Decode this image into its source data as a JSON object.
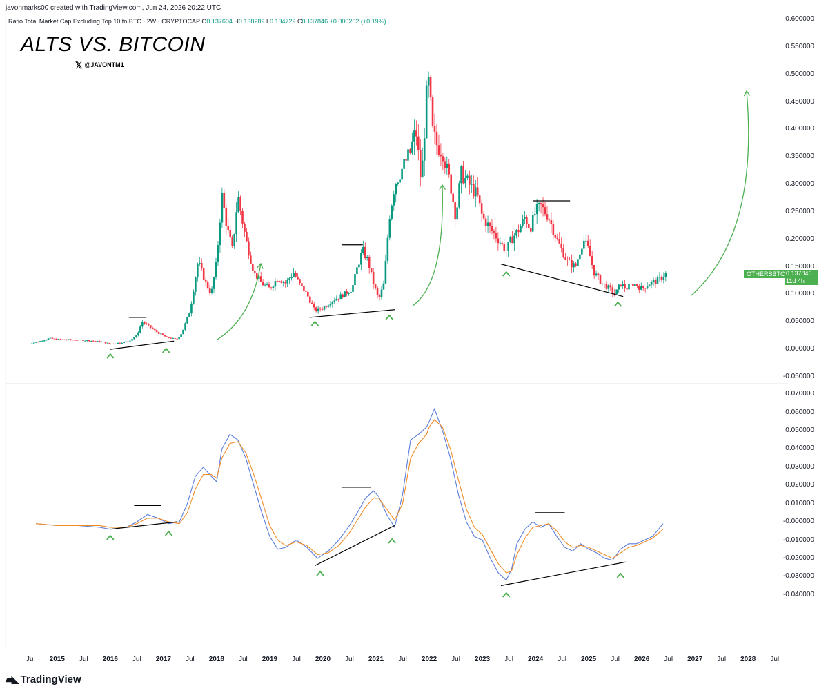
{
  "header": {
    "credit": "javonmarks00 created with TradingView.com, Jun 24, 2026 20:22 UTC",
    "symbol": "Ratio Total Market Cap Excluding Top 10 to BTC · 2W · CRYPTOCAP",
    "o_label": "O",
    "o_value": "0.137604",
    "h_label": "H",
    "h_value": "0.138289",
    "l_label": "L",
    "l_value": "0.134729",
    "c_label": "C",
    "c_value": "0.137846",
    "change": "+0.000262 (+0.19%)"
  },
  "overlay": {
    "title": "ALTS VS. BITCOIN",
    "handle": "@JAVONTM1",
    "handle_icon": "x-logo-icon"
  },
  "price_badge": {
    "symbol": "OTHERSBTC",
    "value": "0.137846",
    "countdown": "11d 4h",
    "color": "#4caf50"
  },
  "brand": {
    "name": "TradingView",
    "icon": "tradingview-logo-icon"
  },
  "colors": {
    "up": "#089981",
    "down": "#f23645",
    "oscillator_fast": "#5b7ddb",
    "oscillator_slow": "#f08a24",
    "annotation_arrow": "#4caf50",
    "trendline": "#000000"
  },
  "chart_data": [
    {
      "type": "candlestick",
      "title": "Ratio Total Market Cap Excluding Top 10 to BTC · 2W · CRYPTOCAP",
      "y_ticks": [
        "0.600000",
        "0.550000",
        "0.500000",
        "0.450000",
        "0.400000",
        "0.350000",
        "0.300000",
        "0.250000",
        "0.200000",
        "0.150000",
        "0.100000",
        "0.050000",
        "0.000000",
        "-0.050000"
      ],
      "ylim": [
        -0.05,
        0.6
      ],
      "x_ticks": [
        "Jul",
        "2015",
        "Jul",
        "2016",
        "Jul",
        "2017",
        "Jul",
        "2018",
        "Jul",
        "2019",
        "Jul",
        "2020",
        "Jul",
        "2021",
        "Jul",
        "2022",
        "Jul",
        "2023",
        "Jul",
        "2024",
        "Jul",
        "2025",
        "Jul",
        "2026",
        "Jul",
        "2027",
        "Jul",
        "2028",
        "Jul"
      ],
      "x_range": [
        2014.25,
        2028.75
      ],
      "close_path_year": [
        2014.45,
        2014.7,
        2014.85,
        2015.0,
        2015.3,
        2015.6,
        2015.8,
        2016.0,
        2016.2,
        2016.35,
        2016.5,
        2016.6,
        2016.75,
        2016.9,
        2017.05,
        2017.15,
        2017.25,
        2017.35,
        2017.5,
        2017.65,
        2017.8,
        2017.9,
        2018.0,
        2018.1,
        2018.2,
        2018.3,
        2018.4,
        2018.55,
        2018.7,
        2018.85,
        2019.0,
        2019.15,
        2019.3,
        2019.45,
        2019.55,
        2019.7,
        2019.85,
        2020.0,
        2020.2,
        2020.4,
        2020.55,
        2020.65,
        2020.75,
        2020.85,
        2020.95,
        2021.05,
        2021.15,
        2021.25,
        2021.35,
        2021.45,
        2021.55,
        2021.65,
        2021.75,
        2021.85,
        2021.95,
        2022.0,
        2022.05,
        2022.15,
        2022.25,
        2022.4,
        2022.5,
        2022.6,
        2022.75,
        2022.9,
        2023.0,
        2023.15,
        2023.3,
        2023.45,
        2023.55,
        2023.7,
        2023.8,
        2023.9,
        2024.0,
        2024.1,
        2024.25,
        2024.4,
        2024.5,
        2024.6,
        2024.75,
        2024.9,
        2025.0,
        2025.1,
        2025.25,
        2025.4,
        2025.5,
        2025.6,
        2025.7,
        2025.85,
        2026.0,
        2026.15,
        2026.3,
        2026.45
      ],
      "close_path_value": [
        0.01,
        0.015,
        0.02,
        0.018,
        0.017,
        0.016,
        0.014,
        0.01,
        0.012,
        0.015,
        0.025,
        0.05,
        0.04,
        0.03,
        0.022,
        0.02,
        0.018,
        0.03,
        0.07,
        0.16,
        0.12,
        0.1,
        0.16,
        0.28,
        0.22,
        0.18,
        0.28,
        0.2,
        0.14,
        0.12,
        0.11,
        0.13,
        0.12,
        0.14,
        0.12,
        0.1,
        0.07,
        0.075,
        0.09,
        0.1,
        0.11,
        0.15,
        0.18,
        0.16,
        0.12,
        0.09,
        0.12,
        0.24,
        0.3,
        0.32,
        0.34,
        0.36,
        0.4,
        0.3,
        0.46,
        0.49,
        0.4,
        0.37,
        0.36,
        0.3,
        0.24,
        0.32,
        0.3,
        0.28,
        0.24,
        0.22,
        0.2,
        0.18,
        0.2,
        0.22,
        0.24,
        0.22,
        0.25,
        0.26,
        0.24,
        0.2,
        0.18,
        0.16,
        0.15,
        0.2,
        0.18,
        0.14,
        0.12,
        0.11,
        0.1,
        0.12,
        0.11,
        0.12,
        0.11,
        0.12,
        0.125,
        0.1378
      ]
    },
    {
      "type": "line",
      "y_ticks": [
        "0.070000",
        "0.060000",
        "0.050000",
        "0.040000",
        "0.030000",
        "0.020000",
        "0.010000",
        "-0.000000",
        "-0.010000",
        "-0.020000",
        "-0.030000",
        "-0.040000"
      ],
      "ylim": [
        -0.042,
        0.072
      ],
      "x": [
        2014.6,
        2015.0,
        2015.4,
        2015.8,
        2016.0,
        2016.3,
        2016.5,
        2016.7,
        2016.9,
        2017.1,
        2017.3,
        2017.45,
        2017.6,
        2017.75,
        2017.9,
        2018.0,
        2018.1,
        2018.25,
        2018.4,
        2018.55,
        2018.7,
        2018.85,
        2019.0,
        2019.15,
        2019.3,
        2019.5,
        2019.7,
        2019.9,
        2020.1,
        2020.3,
        2020.5,
        2020.65,
        2020.8,
        2020.95,
        2021.05,
        2021.2,
        2021.35,
        2021.5,
        2021.65,
        2021.8,
        2021.95,
        2022.0,
        2022.1,
        2022.25,
        2022.4,
        2022.55,
        2022.7,
        2022.85,
        2023.0,
        2023.15,
        2023.3,
        2023.45,
        2023.55,
        2023.65,
        2023.8,
        2023.95,
        2024.1,
        2024.25,
        2024.4,
        2024.55,
        2024.7,
        2024.85,
        2025.0,
        2025.15,
        2025.3,
        2025.45,
        2025.6,
        2025.75,
        2025.9,
        2026.05,
        2026.2,
        2026.4
      ],
      "series": [
        {
          "color": "#5b7ddb",
          "values": [
            -0.001,
            -0.002,
            -0.002,
            -0.003,
            -0.004,
            -0.003,
            0.0,
            0.004,
            0.002,
            -0.001,
            0.0,
            0.01,
            0.025,
            0.03,
            0.025,
            0.022,
            0.04,
            0.048,
            0.045,
            0.035,
            0.02,
            0.005,
            -0.008,
            -0.015,
            -0.014,
            -0.01,
            -0.014,
            -0.02,
            -0.016,
            -0.01,
            -0.002,
            0.005,
            0.013,
            0.017,
            0.014,
            0.004,
            -0.003,
            0.015,
            0.045,
            0.048,
            0.052,
            0.055,
            0.062,
            0.05,
            0.035,
            0.015,
            0.0,
            -0.008,
            -0.01,
            -0.02,
            -0.028,
            -0.032,
            -0.026,
            -0.012,
            -0.004,
            0.0,
            -0.003,
            -0.001,
            -0.008,
            -0.014,
            -0.016,
            -0.012,
            -0.015,
            -0.017,
            -0.02,
            -0.021,
            -0.015,
            -0.012,
            -0.012,
            -0.01,
            -0.008,
            -0.001
          ]
        },
        {
          "color": "#f08a24",
          "values": [
            -0.001,
            -0.002,
            -0.002,
            -0.002,
            -0.003,
            -0.003,
            -0.001,
            0.002,
            0.002,
            0.0,
            -0.001,
            0.005,
            0.018,
            0.026,
            0.026,
            0.024,
            0.035,
            0.043,
            0.044,
            0.038,
            0.026,
            0.012,
            -0.002,
            -0.01,
            -0.013,
            -0.011,
            -0.013,
            -0.018,
            -0.017,
            -0.013,
            -0.006,
            0.001,
            0.008,
            0.013,
            0.013,
            0.007,
            0.001,
            0.01,
            0.035,
            0.043,
            0.048,
            0.052,
            0.056,
            0.052,
            0.04,
            0.023,
            0.007,
            -0.003,
            -0.007,
            -0.015,
            -0.023,
            -0.028,
            -0.027,
            -0.018,
            -0.009,
            -0.003,
            -0.002,
            -0.001,
            -0.005,
            -0.011,
            -0.014,
            -0.013,
            -0.014,
            -0.016,
            -0.018,
            -0.02,
            -0.017,
            -0.014,
            -0.013,
            -0.011,
            -0.009,
            -0.004
          ]
        }
      ]
    }
  ]
}
